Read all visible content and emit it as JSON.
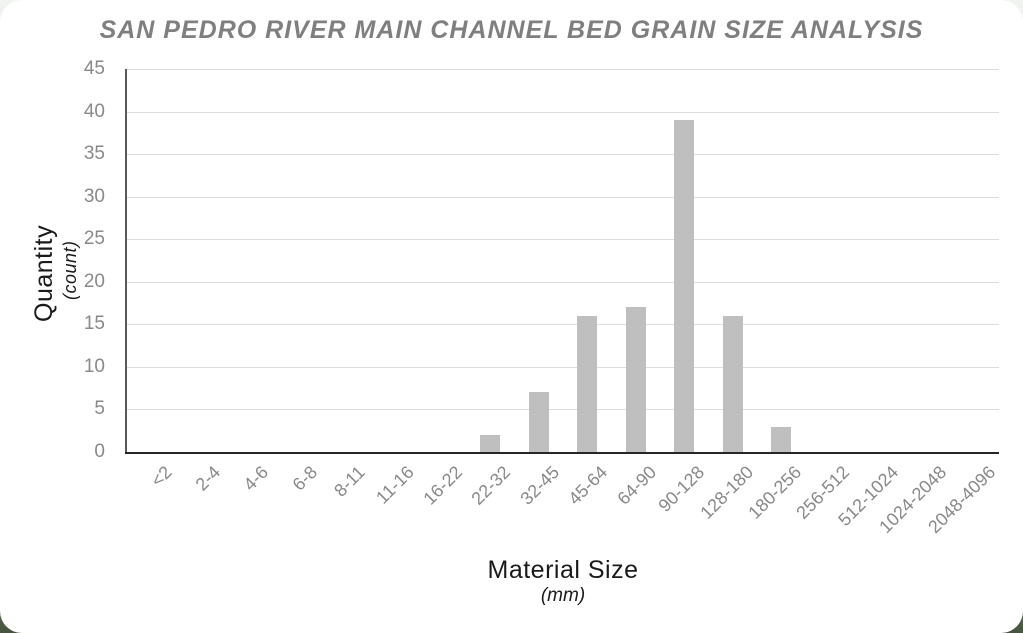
{
  "chart_data": {
    "type": "bar",
    "title": "SAN PEDRO RIVER MAIN CHANNEL BED GRAIN SIZE ANALYSIS",
    "categories": [
      "<2",
      "2-4",
      "4-6",
      "6-8",
      "8-11",
      "11-16",
      "16-22",
      "22-32",
      "32-45",
      "45-64",
      "64-90",
      "90-128",
      "128-180",
      "180-256",
      "256-512",
      "512-1024",
      "1024-2048",
      "2048-4096"
    ],
    "values": [
      0,
      0,
      0,
      0,
      0,
      0,
      0,
      2,
      7,
      16,
      17,
      39,
      16,
      3,
      0,
      0,
      0,
      0
    ],
    "xlabel": "Material Size",
    "xlabel_unit": "(mm)",
    "ylabel": "Quantity",
    "ylabel_unit": "(count)",
    "ylim": [
      0,
      45
    ],
    "yticks": [
      0,
      5,
      10,
      15,
      20,
      25,
      30,
      35,
      40,
      45
    ],
    "grid": true,
    "legend": "none",
    "bar_color": "#bfbfbf",
    "gridline_color": "#dcdcdc",
    "y_axis_color": "#595959",
    "x_axis_color": "#262626",
    "tick_label_color": "#898989",
    "title_color": "#7f7f7f"
  }
}
